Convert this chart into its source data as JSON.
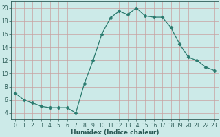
{
  "x": [
    0,
    1,
    2,
    3,
    4,
    5,
    6,
    7,
    8,
    9,
    10,
    11,
    12,
    13,
    14,
    15,
    16,
    17,
    18,
    19,
    20,
    21,
    22,
    23
  ],
  "y": [
    7,
    6,
    5.5,
    5,
    4.8,
    4.8,
    4.8,
    4,
    8.5,
    12,
    16,
    18.5,
    19.5,
    19,
    20,
    18.8,
    18.6,
    18.6,
    17,
    14.5,
    12.5,
    12,
    11,
    10.5
  ],
  "line_color": "#2a7a6e",
  "marker": "D",
  "marker_size": 2.5,
  "bg_color": "#cceae8",
  "grid_color": "#aad4d0",
  "tick_color": "#2a5a55",
  "xlabel": "Humidex (Indice chaleur)",
  "xlim": [
    -0.5,
    23.5
  ],
  "ylim": [
    3,
    21
  ],
  "yticks": [
    4,
    6,
    8,
    10,
    12,
    14,
    16,
    18,
    20
  ],
  "xticks": [
    0,
    1,
    2,
    3,
    4,
    5,
    6,
    7,
    8,
    9,
    10,
    11,
    12,
    13,
    14,
    15,
    16,
    17,
    18,
    19,
    20,
    21,
    22,
    23
  ]
}
